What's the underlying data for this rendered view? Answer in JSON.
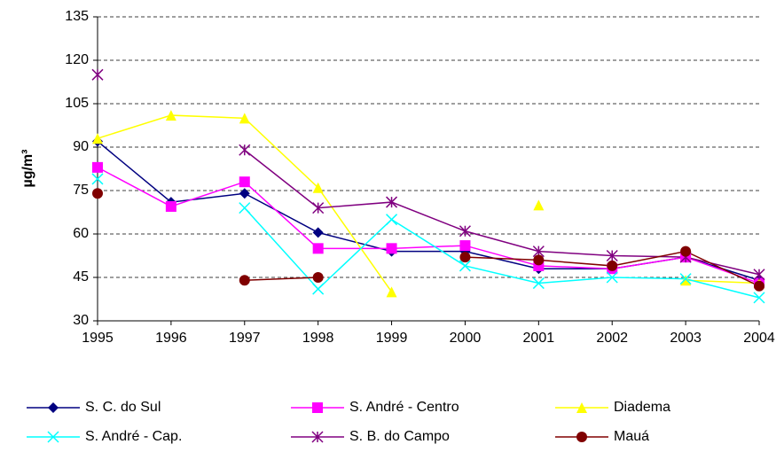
{
  "chart_data": {
    "type": "line",
    "y_label": "µg/m³",
    "x": [
      1995,
      1996,
      1997,
      1998,
      1999,
      2000,
      2001,
      2002,
      2003,
      2004
    ],
    "xlim": [
      1995,
      2004
    ],
    "xticks": [
      1995,
      1996,
      1997,
      1998,
      1999,
      2000,
      2001,
      2002,
      2003,
      2004
    ],
    "ylim": [
      30,
      135
    ],
    "yticks": [
      30,
      45,
      60,
      75,
      90,
      105,
      120,
      135
    ],
    "grid": true,
    "legend": "bottom",
    "series": [
      {
        "name": "S. C. do Sul",
        "color": "#000080",
        "marker": "diamond",
        "values": [
          92,
          71,
          74,
          60.5,
          54,
          54,
          48,
          48,
          52,
          44
        ]
      },
      {
        "name": "S. André - Centro",
        "color": "#ff00ff",
        "marker": "square",
        "values": [
          83,
          69.5,
          78,
          55,
          55,
          56,
          49,
          48,
          52,
          43
        ]
      },
      {
        "name": "Diadema",
        "color": "#ffff00",
        "marker": "triangle",
        "values": [
          93,
          101,
          100,
          76,
          40,
          null,
          70,
          null,
          44,
          43
        ]
      },
      {
        "name": "S. André - Cap.",
        "color": "#00ffff",
        "marker": "x",
        "values": [
          79,
          null,
          69,
          41,
          65,
          49,
          43,
          45,
          44.5,
          38
        ]
      },
      {
        "name": "S. B. do Campo",
        "color": "#800080",
        "marker": "star",
        "values": [
          115,
          null,
          89,
          69,
          71,
          61,
          54,
          52.5,
          52,
          46
        ]
      },
      {
        "name": "Mauá",
        "color": "#800000",
        "marker": "circle",
        "values": [
          74,
          null,
          44,
          45,
          null,
          52,
          51,
          49,
          54,
          42
        ]
      }
    ]
  }
}
